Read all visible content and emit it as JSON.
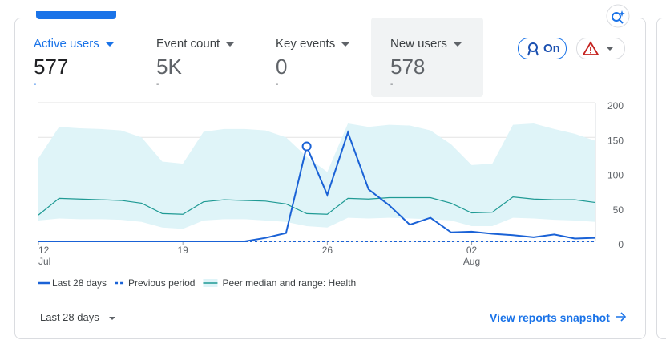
{
  "tabs": [
    {
      "label": "Active users",
      "value": "577",
      "delta": "-"
    },
    {
      "label": "Event count",
      "value": "5K",
      "delta": "-"
    },
    {
      "label": "Key events",
      "value": "0",
      "delta": "-"
    },
    {
      "label": "New users",
      "value": "578",
      "delta": "-"
    }
  ],
  "toggle": "On",
  "date_range": "Last 28 days",
  "link": "View reports snapshot",
  "chart_data": {
    "type": "line",
    "categories": [
      "12",
      null,
      null,
      null,
      null,
      null,
      null,
      "19",
      null,
      null,
      null,
      null,
      null,
      null,
      "26",
      null,
      null,
      null,
      null,
      null,
      null,
      "02",
      null,
      null,
      null,
      null,
      null,
      null
    ],
    "category_months": [
      "Jul",
      null,
      null,
      null,
      null,
      null,
      null,
      null,
      null,
      null,
      null,
      null,
      null,
      null,
      null,
      null,
      null,
      null,
      null,
      null,
      null,
      "Aug",
      null,
      null,
      null,
      null,
      null,
      null
    ],
    "ylim": [
      0,
      200
    ],
    "yticks": [
      0,
      50,
      100,
      150,
      200
    ],
    "grid": true,
    "highlight_index": 13,
    "series": [
      {
        "name": "Last 28 days",
        "color": "#1a62d6",
        "values": [
          0,
          0,
          0,
          0,
          0,
          0,
          0,
          0,
          0,
          0,
          0,
          5,
          12,
          137,
          67,
          157,
          75,
          52,
          24,
          34,
          13,
          14,
          11,
          9,
          6,
          10,
          4,
          5
        ]
      },
      {
        "name": "Previous period",
        "color": "#1a62d6",
        "dashed": true,
        "values": [
          0,
          0,
          0,
          0,
          0,
          0,
          0,
          0,
          0,
          0,
          0,
          0,
          0,
          0,
          0,
          0,
          0,
          0,
          0,
          0,
          0,
          0,
          0,
          0,
          0,
          0,
          0,
          0
        ]
      },
      {
        "name": "Peer median and range: Health",
        "color": "#1f9a94",
        "band_color": "#dff4f8",
        "values": [
          38,
          62,
          61,
          60,
          59,
          55,
          40,
          39,
          57,
          60,
          59,
          58,
          54,
          40,
          39,
          62,
          61,
          63,
          63,
          63,
          55,
          41,
          42,
          64,
          61,
          60,
          60,
          56
        ],
        "lower": [
          30,
          33,
          32,
          32,
          31,
          28,
          20,
          18,
          30,
          32,
          32,
          30,
          28,
          22,
          20,
          34,
          33,
          34,
          33,
          32,
          30,
          22,
          22,
          34,
          33,
          31,
          30,
          28
        ],
        "upper": [
          120,
          165,
          163,
          162,
          160,
          150,
          115,
          112,
          158,
          162,
          162,
          160,
          150,
          122,
          100,
          170,
          165,
          168,
          167,
          160,
          140,
          110,
          112,
          168,
          170,
          162,
          155,
          145
        ]
      }
    ]
  }
}
